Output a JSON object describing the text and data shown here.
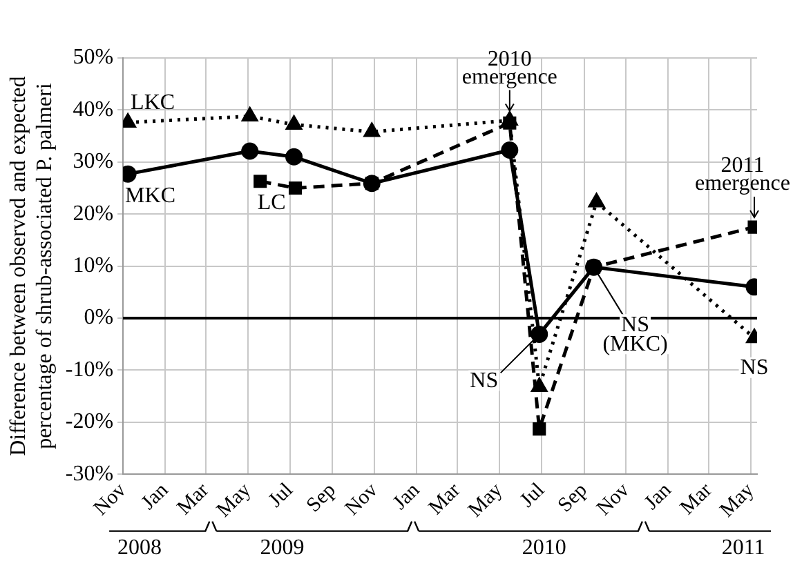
{
  "chart_data": {
    "type": "line",
    "ylabel": "Difference between observed and expected percentage of shrub-associated P. palmeri",
    "xlim": [
      "2008-11",
      "2011-05-10"
    ],
    "xticks": [
      {
        "value": "2008-11",
        "label": "Nov"
      },
      {
        "value": "2009-01",
        "label": "Jan"
      },
      {
        "value": "2009-03",
        "label": "Mar"
      },
      {
        "value": "2009-05",
        "label": "May"
      },
      {
        "value": "2009-07",
        "label": "Jul"
      },
      {
        "value": "2009-09",
        "label": "Sep"
      },
      {
        "value": "2009-11",
        "label": "Nov"
      },
      {
        "value": "2010-01",
        "label": "Jan"
      },
      {
        "value": "2010-03",
        "label": "Mar"
      },
      {
        "value": "2010-05",
        "label": "May"
      },
      {
        "value": "2010-07",
        "label": "Jul"
      },
      {
        "value": "2010-09",
        "label": "Sep"
      },
      {
        "value": "2010-11",
        "label": "Nov"
      },
      {
        "value": "2011-01",
        "label": "Jan"
      },
      {
        "value": "2011-03",
        "label": "Mar"
      },
      {
        "value": "2011-05",
        "label": "May"
      }
    ],
    "x2lim": [
      "2008-11",
      "2011-05-10"
    ],
    "x2ticks": [
      {
        "value": "2008-11-25",
        "label": "2008"
      },
      {
        "value": "2009-06-20",
        "label": "2009"
      },
      {
        "value": "2010-07-05",
        "label": "2010"
      },
      {
        "value": "2011-04-20",
        "label": "2011"
      }
    ],
    "ylim": [
      -30,
      50
    ],
    "yticks": [
      {
        "value": -30,
        "label": "-30%"
      },
      {
        "value": -20,
        "label": "-20%"
      },
      {
        "value": -10,
        "label": "-10%"
      },
      {
        "value": 0,
        "label": "0%"
      },
      {
        "value": 10,
        "label": "10%"
      },
      {
        "value": 20,
        "label": "20%"
      },
      {
        "value": 30,
        "label": "30%"
      },
      {
        "value": 40,
        "label": "40%"
      },
      {
        "value": 50,
        "label": "50%"
      }
    ],
    "grid": true,
    "legend": false,
    "series": [
      {
        "name": "LKC",
        "color": "#000000",
        "marker": "triangle",
        "line_style": "dotted",
        "x": [
          "2008-11-08",
          "2009-05-04",
          "2009-07-07",
          "2009-10-28",
          "2010-05-16",
          "2010-06-28",
          "2010-09-19",
          "2011-05-06"
        ],
        "values": [
          37.6,
          38.8,
          37.2,
          35.8,
          38,
          -13.2,
          22.3,
          -3.8
        ]
      },
      {
        "name": "MKC",
        "color": "#000000",
        "marker": "circle",
        "line_style": "solid",
        "x": [
          "2008-11-08",
          "2009-05-04",
          "2009-07-07",
          "2009-10-28",
          "2010-05-16",
          "2010-06-28",
          "2010-09-15",
          "2011-05-06"
        ],
        "values": [
          27.7,
          32.1,
          31,
          25.9,
          32.3,
          -3.1,
          9.8,
          6
        ]
      },
      {
        "name": "LC",
        "color": "#000000",
        "marker": "square",
        "line_style": "dashed",
        "x": [
          "2009-05-19",
          "2009-07-09",
          "2009-10-28",
          "2010-05-16",
          "2010-06-28",
          "2010-09-15",
          "2011-05-06"
        ],
        "values": [
          26.3,
          25,
          25.9,
          37.5,
          -21.3,
          9.8,
          17.5
        ]
      }
    ],
    "annotations": [
      {
        "text": "2010 emergence",
        "x": "2010-05-16",
        "y": 38
      },
      {
        "text": "2011 emergence",
        "x": "2011-05-06",
        "y": 17.5
      },
      {
        "text": "NS",
        "x": "2010-06-28",
        "y": -3.1
      },
      {
        "text": "NS (MKC)",
        "x": "2010-09-15",
        "y": 9.8
      },
      {
        "text": "NS",
        "x": "2011-05-06",
        "y": -3.8
      }
    ]
  }
}
